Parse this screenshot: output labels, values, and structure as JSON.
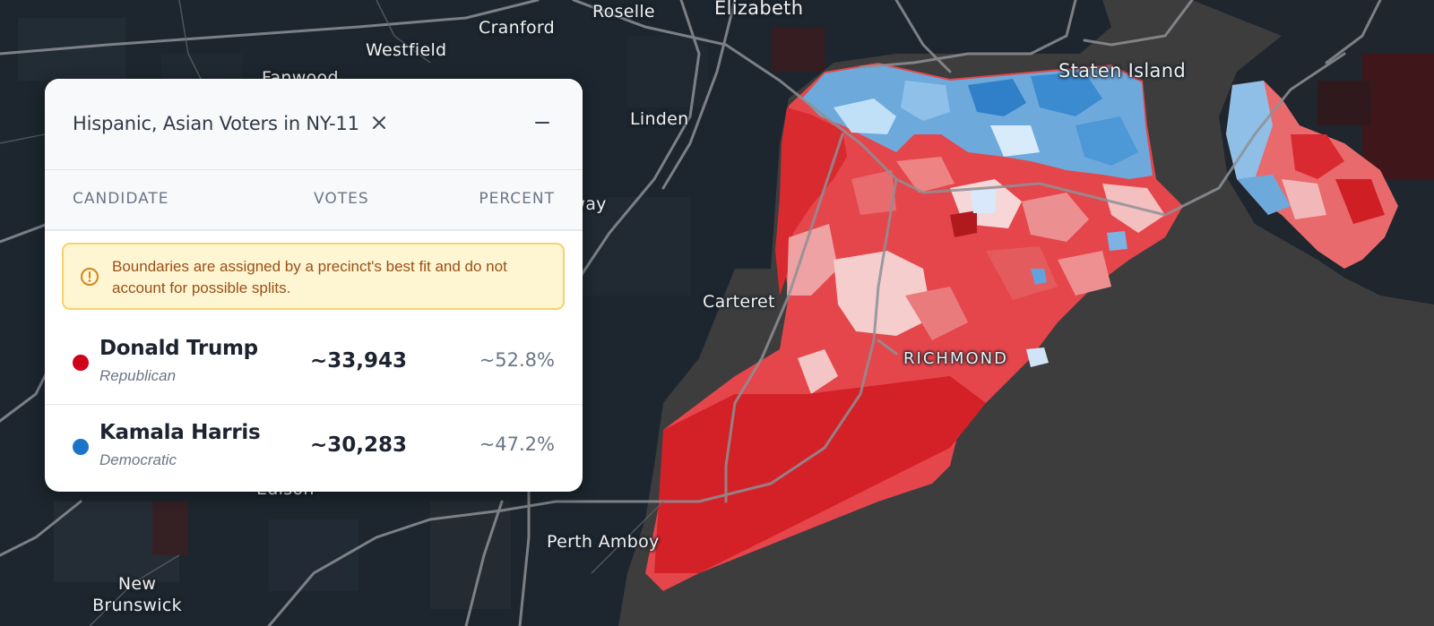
{
  "panel": {
    "title": "Hispanic, Asian Voters in NY-11",
    "columns": {
      "candidate": "CANDIDATE",
      "votes": "VOTES",
      "percent": "PERCENT"
    },
    "notice": "Boundaries are assigned by a precinct's best fit and do not account for possible splits.",
    "candidates": [
      {
        "name": "Donald Trump",
        "party": "Republican",
        "votes": "~33,943",
        "percent": "~52.8%",
        "color": "#d0021b"
      },
      {
        "name": "Kamala Harris",
        "party": "Democratic",
        "votes": "~30,283",
        "percent": "~47.2%",
        "color": "#1a75c9"
      }
    ],
    "icons": {
      "close": "close-icon",
      "minimize": "minimize-icon",
      "notice": "info-circle-icon"
    }
  },
  "map": {
    "labels": {
      "roselle": "Roselle",
      "elizabeth": "Elizabeth",
      "cranford": "Cranford",
      "westfield": "Westfield",
      "fanwood": "Fanwood",
      "linden": "Linden",
      "rahway": "Rahway",
      "carteret": "Carteret",
      "staten_island": "Staten Island",
      "richmond": "RICHMOND",
      "perth_amboy": "Perth Amboy",
      "new_brunswick": "New Brunswick",
      "edison": "Edison"
    },
    "colors": {
      "water": "#3d3d3d",
      "land": "#1d262f",
      "roads": "#8b8f94",
      "republican_strong": "#d42128",
      "republican_lean": "#e9787a",
      "democratic_strong": "#2f80c8",
      "democratic_lean": "#9cc9ec"
    }
  }
}
